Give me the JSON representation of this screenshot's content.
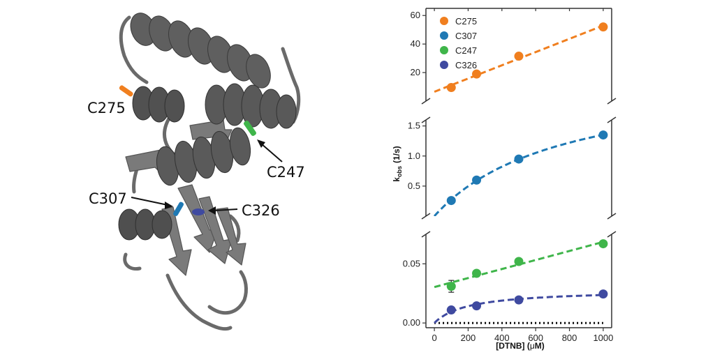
{
  "structure": {
    "labels": [
      "C275",
      "C247",
      "C307",
      "C326"
    ],
    "colors": {
      "ribbon": "#5f5f5f",
      "ribbon_dark": "#474747",
      "c275": "#f07f1f",
      "c247": "#3fb54a",
      "c307": "#1f79b4",
      "c326": "#3f4aa0"
    }
  },
  "chart_data": [
    {
      "type": "scatter",
      "panel": "top",
      "x": [
        100,
        250,
        500,
        1000
      ],
      "series": [
        {
          "name": "C275",
          "color": "#f07f1f",
          "values": [
            9.5,
            19,
            31.5,
            52
          ],
          "fit": "linear"
        }
      ],
      "ylim": [
        0,
        65
      ],
      "yticks": [
        "20",
        "40",
        "60"
      ],
      "ytick_values": [
        20,
        40,
        60
      ],
      "xlim": [
        -50,
        1050
      ]
    },
    {
      "type": "scatter",
      "panel": "middle",
      "x": [
        100,
        250,
        500,
        1000
      ],
      "series": [
        {
          "name": "C307",
          "color": "#1f79b4",
          "values": [
            0.26,
            0.6,
            0.95,
            1.35
          ],
          "fit": "saturating"
        }
      ],
      "ylim": [
        0,
        1.6
      ],
      "yticks": [
        "0.5",
        "1.0",
        "1.5"
      ],
      "ytick_values": [
        0.5,
        1.0,
        1.5
      ],
      "ylabel_main": "k",
      "ylabel_sub": "obs",
      "ylabel_unit": "(1/s)",
      "xlim": [
        -50,
        1050
      ]
    },
    {
      "type": "scatter",
      "panel": "bottom",
      "x": [
        100,
        250,
        500,
        1000
      ],
      "series": [
        {
          "name": "C247",
          "color": "#3fb54a",
          "values": [
            0.031,
            0.042,
            0.052,
            0.067
          ],
          "fit": "linear",
          "error": [
            0.005,
            0,
            0,
            0
          ]
        },
        {
          "name": "C326",
          "color": "#3f4aa0",
          "values": [
            0.011,
            0.0145,
            0.0195,
            0.0245
          ],
          "fit": "saturating",
          "error": [
            0,
            0,
            0,
            0
          ]
        }
      ],
      "baseline": 0,
      "ylim": [
        -0.004,
        0.075
      ],
      "yticks": [
        "0.00",
        "0.05"
      ],
      "ytick_values": [
        0,
        0.05
      ],
      "xticks": [
        "0",
        "200",
        "400",
        "600",
        "800",
        "1000"
      ],
      "xtick_values": [
        0,
        200,
        400,
        600,
        800,
        1000
      ],
      "xlabel_prefix": "[DTNB] (",
      "xlabel_mu": "μ",
      "xlabel_suffix": "M)",
      "xlim": [
        -50,
        1050
      ]
    }
  ],
  "legend": {
    "placement": "top-left",
    "entries": [
      {
        "name": "C275",
        "color": "#f07f1f"
      },
      {
        "name": "C307",
        "color": "#1f79b4"
      },
      {
        "name": "C247",
        "color": "#3fb54a"
      },
      {
        "name": "C326",
        "color": "#3f4aa0"
      }
    ]
  }
}
